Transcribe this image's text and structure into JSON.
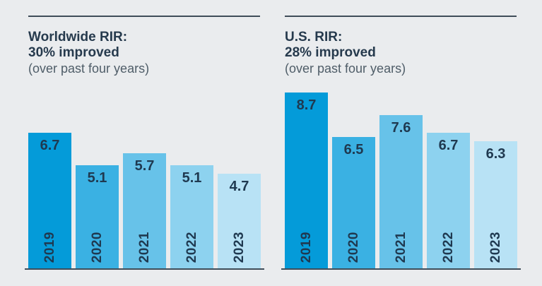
{
  "page": {
    "background_color": "#eaecee"
  },
  "colors": {
    "title_text": "#263a4d",
    "subtitle_text": "#4f5d68",
    "rule_line": "#3f4d59",
    "axis_line": "#3f4d59",
    "bar_value_text": "#1f3950",
    "bar_palette": [
      "#049bd9",
      "#3ab1e3",
      "#67c2e9",
      "#8dd2ef",
      "#b8e2f5"
    ]
  },
  "charts": [
    {
      "title_line1": "Worldwide RIR:",
      "title_line2": "30% improved",
      "subtitle": "(over past four years)"
    },
    {
      "title_line1": "U.S. RIR:",
      "title_line2": "28% improved",
      "subtitle": "(over past four years)"
    }
  ],
  "chart_data": [
    {
      "type": "bar",
      "title": "Worldwide RIR: 30% improved (over past four years)",
      "categories": [
        "2019",
        "2020",
        "2021",
        "2022",
        "2023"
      ],
      "values": [
        6.7,
        5.1,
        5.7,
        5.1,
        4.7
      ],
      "ylim": [
        0,
        9.5
      ],
      "grid": false,
      "legend": false,
      "value_labels": "inside-top, one decimal",
      "category_labels": "inside-bottom, rotated 90° reading bottom-to-top",
      "bar_colors": [
        "#049bd9",
        "#3ab1e3",
        "#67c2e9",
        "#8dd2ef",
        "#b8e2f5"
      ]
    },
    {
      "type": "bar",
      "title": "U.S. RIR: 28% improved (over past four years)",
      "categories": [
        "2019",
        "2020",
        "2021",
        "2022",
        "2023"
      ],
      "values": [
        8.7,
        6.5,
        7.6,
        6.7,
        6.3
      ],
      "ylim": [
        0,
        9.5
      ],
      "grid": false,
      "legend": false,
      "value_labels": "inside-top, one decimal",
      "category_labels": "inside-bottom, rotated 90° reading bottom-to-top",
      "bar_colors": [
        "#049bd9",
        "#3ab1e3",
        "#67c2e9",
        "#8dd2ef",
        "#b8e2f5"
      ]
    }
  ]
}
